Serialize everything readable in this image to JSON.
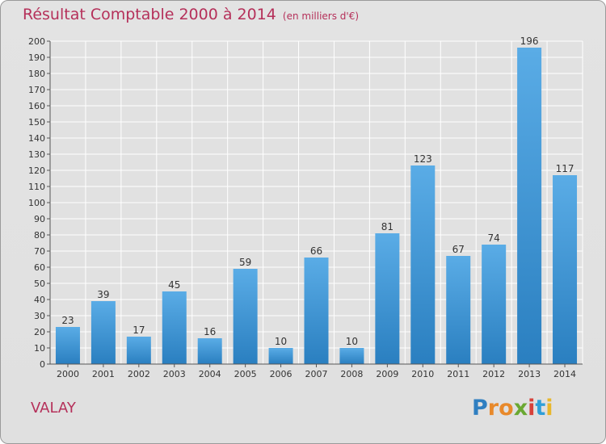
{
  "title": "Résultat Comptable 2000 à 2014",
  "unit": "(en milliers d'€)",
  "commune": "VALAY",
  "logo": {
    "letters": [
      {
        "ch": "P",
        "color": "#2f7fc1"
      },
      {
        "ch": "r",
        "color": "#e8892b"
      },
      {
        "ch": "o",
        "color": "#e8892b"
      },
      {
        "ch": "x",
        "color": "#6aa832"
      },
      {
        "ch": "i",
        "color": "#d7413a"
      },
      {
        "ch": "t",
        "color": "#2f9fd8"
      },
      {
        "ch": "i",
        "color": "#e8b72b"
      }
    ]
  },
  "colors": {
    "title": "#b5305a",
    "bar_light": "#5aace6",
    "bar_dark": "#2a7fc0",
    "background": "#e1e1e1",
    "grid": "#ffffff"
  },
  "chart_data": {
    "type": "bar",
    "categories": [
      "2000",
      "2001",
      "2002",
      "2003",
      "2004",
      "2005",
      "2006",
      "2007",
      "2008",
      "2009",
      "2010",
      "2011",
      "2012",
      "2013",
      "2014"
    ],
    "values": [
      23,
      39,
      17,
      45,
      16,
      59,
      10,
      66,
      10,
      81,
      123,
      67,
      74,
      196,
      117
    ],
    "ylim": [
      0,
      200
    ],
    "ytick_step": 10,
    "grid": true,
    "data_labels": true
  }
}
